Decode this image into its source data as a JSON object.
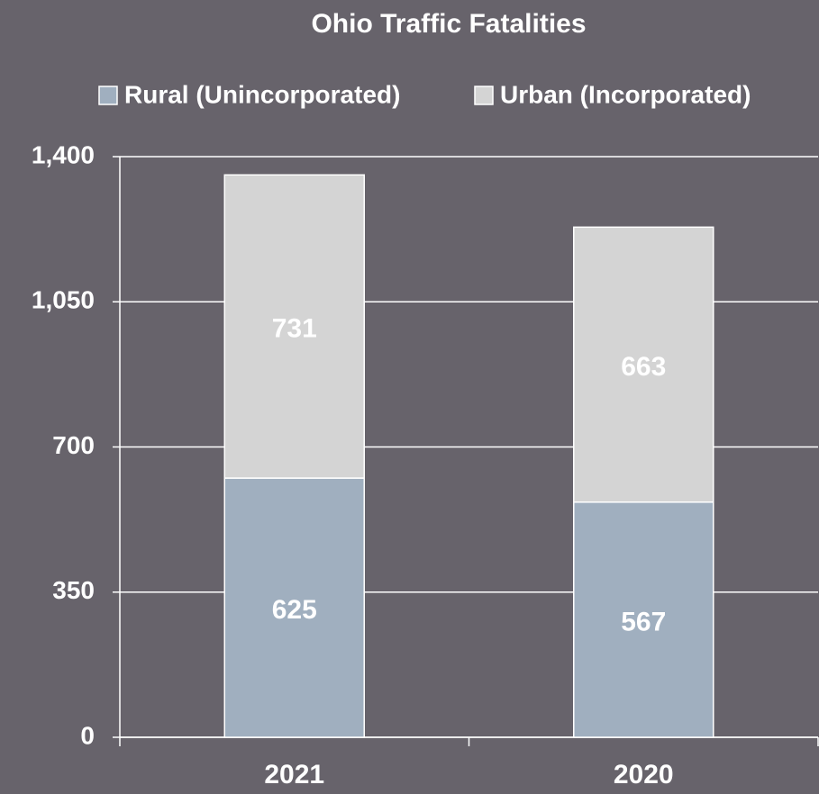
{
  "chart_data": {
    "type": "stacked_bar",
    "title": "Ohio Traffic Fatalities",
    "categories": [
      "2021",
      "2020"
    ],
    "series": [
      {
        "name": "Rural (Unincorporated)",
        "color": "#a0afbf",
        "values": [
          625,
          567
        ]
      },
      {
        "name": "Urban (Incorporated)",
        "color": "#d4d4d4",
        "values": [
          731,
          663
        ]
      }
    ],
    "ylim": [
      0,
      1400
    ],
    "yticks": [
      0,
      350,
      700,
      {
        "value": 1050,
        "label": "1,050"
      },
      {
        "value": 1400,
        "label": "1,400"
      }
    ],
    "grid": true,
    "legend": "top"
  }
}
